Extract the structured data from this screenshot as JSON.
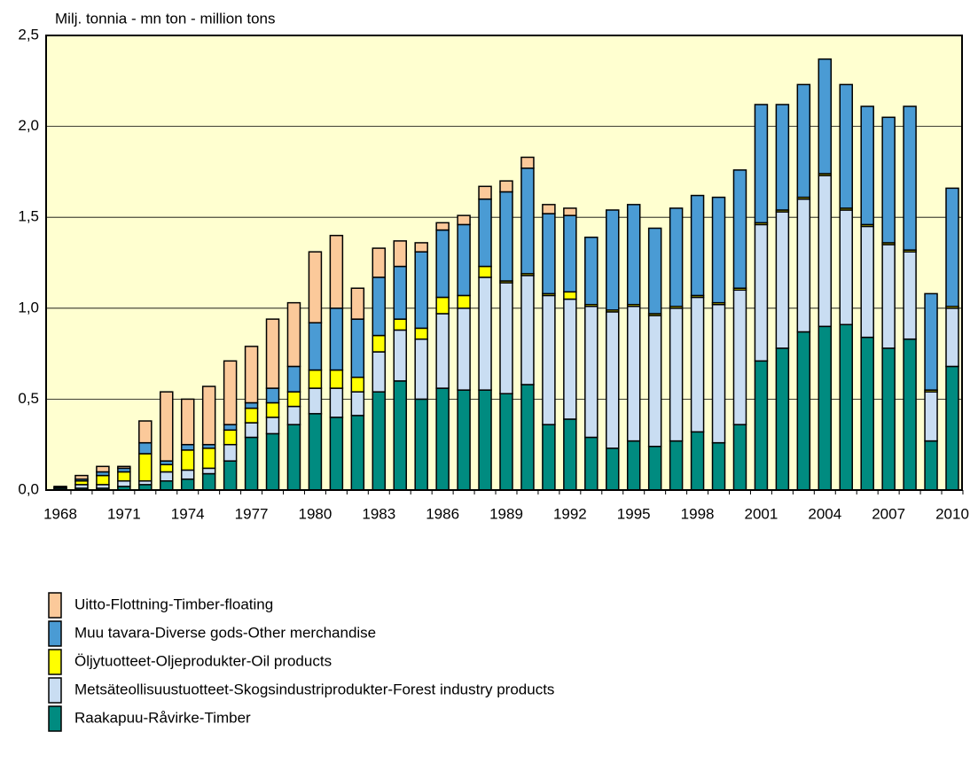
{
  "chart_data": {
    "type": "bar",
    "stacked": true,
    "y_axis_label": "Milj. tonnia - mn ton - million tons",
    "categories": [
      "1968",
      null,
      null,
      "1971",
      null,
      null,
      "1974",
      null,
      null,
      "1977",
      null,
      null,
      "1980",
      null,
      null,
      "1983",
      null,
      null,
      "1986",
      null,
      null,
      "1989",
      null,
      null,
      "1992",
      null,
      null,
      "1995",
      null,
      null,
      "1998",
      null,
      null,
      "2001",
      null,
      null,
      "2004",
      null,
      null,
      "2007",
      null,
      null,
      "2010"
    ],
    "ylim": [
      0,
      2.5
    ],
    "yticks": [
      {
        "value": 0,
        "label": "0,0"
      },
      {
        "value": 0.5,
        "label": "0,5"
      },
      {
        "value": 1,
        "label": "1,0"
      },
      {
        "value": 1.5,
        "label": "1,5"
      },
      {
        "value": 2,
        "label": "2,0"
      },
      {
        "value": 2.5,
        "label": "2,5"
      }
    ],
    "grid": true,
    "plot_background": "#ffffd0",
    "series": [
      {
        "name": "Raakapuu-Råvirke-Timber",
        "color": "#008b80",
        "values": [
          0.01,
          0.01,
          0.01,
          0.02,
          0.03,
          0.05,
          0.06,
          0.09,
          0.16,
          0.29,
          0.31,
          0.36,
          0.42,
          0.4,
          0.41,
          0.54,
          0.6,
          0.5,
          0.56,
          0.55,
          0.55,
          0.53,
          0.58,
          0.36,
          0.39,
          0.29,
          0.23,
          0.27,
          0.24,
          0.27,
          0.32,
          0.26,
          0.36,
          0.71,
          0.78,
          0.87,
          0.9,
          0.91,
          0.84,
          0.78,
          0.83,
          0.27,
          0.68
        ]
      },
      {
        "name": "Metsäteollisuustuotteet-Skogsindustriprodukter-Forest industry products",
        "color": "#c9ddf2",
        "values": [
          0.005,
          0.02,
          0.02,
          0.03,
          0.02,
          0.05,
          0.05,
          0.03,
          0.09,
          0.08,
          0.09,
          0.1,
          0.14,
          0.16,
          0.13,
          0.22,
          0.28,
          0.33,
          0.41,
          0.45,
          0.62,
          0.61,
          0.6,
          0.71,
          0.66,
          0.72,
          0.75,
          0.74,
          0.72,
          0.73,
          0.74,
          0.76,
          0.74,
          0.75,
          0.75,
          0.73,
          0.83,
          0.63,
          0.61,
          0.57,
          0.48,
          0.27,
          0.32
        ]
      },
      {
        "name": "Öljytuotteet-Oljeprodukter-Oil products",
        "color": "#ffff00",
        "values": [
          0,
          0.02,
          0.05,
          0.05,
          0.15,
          0.04,
          0.11,
          0.11,
          0.08,
          0.08,
          0.08,
          0.08,
          0.1,
          0.1,
          0.08,
          0.09,
          0.06,
          0.06,
          0.09,
          0.07,
          0.06,
          0.01,
          0.01,
          0.01,
          0.04,
          0.01,
          0.01,
          0.01,
          0.01,
          0.01,
          0.01,
          0.01,
          0.01,
          0.01,
          0.01,
          0.01,
          0.01,
          0.01,
          0.01,
          0.01,
          0.01,
          0.01,
          0.01
        ]
      },
      {
        "name": "Muu tavara-Diverse gods-Other merchandise",
        "color": "#4a9bd4",
        "values": [
          0.005,
          0.01,
          0.02,
          0.02,
          0.06,
          0.02,
          0.03,
          0.02,
          0.03,
          0.03,
          0.08,
          0.14,
          0.26,
          0.34,
          0.32,
          0.32,
          0.29,
          0.42,
          0.37,
          0.39,
          0.37,
          0.49,
          0.58,
          0.44,
          0.42,
          0.37,
          0.55,
          0.55,
          0.47,
          0.54,
          0.55,
          0.58,
          0.65,
          0.65,
          0.58,
          0.62,
          0.63,
          0.68,
          0.65,
          0.69,
          0.79,
          0.53,
          0.65
        ]
      },
      {
        "name": "Uitto-Flottning-Timber-floating",
        "color": "#fbc99a",
        "values": [
          0,
          0.02,
          0.03,
          0.01,
          0.12,
          0.38,
          0.25,
          0.32,
          0.35,
          0.31,
          0.38,
          0.35,
          0.39,
          0.4,
          0.17,
          0.16,
          0.14,
          0.05,
          0.04,
          0.05,
          0.07,
          0.06,
          0.06,
          0.05,
          0.04,
          0,
          0,
          0,
          0,
          0,
          0,
          0,
          0,
          0,
          0,
          0,
          0,
          0,
          0,
          0,
          0,
          0,
          0
        ]
      }
    ]
  }
}
